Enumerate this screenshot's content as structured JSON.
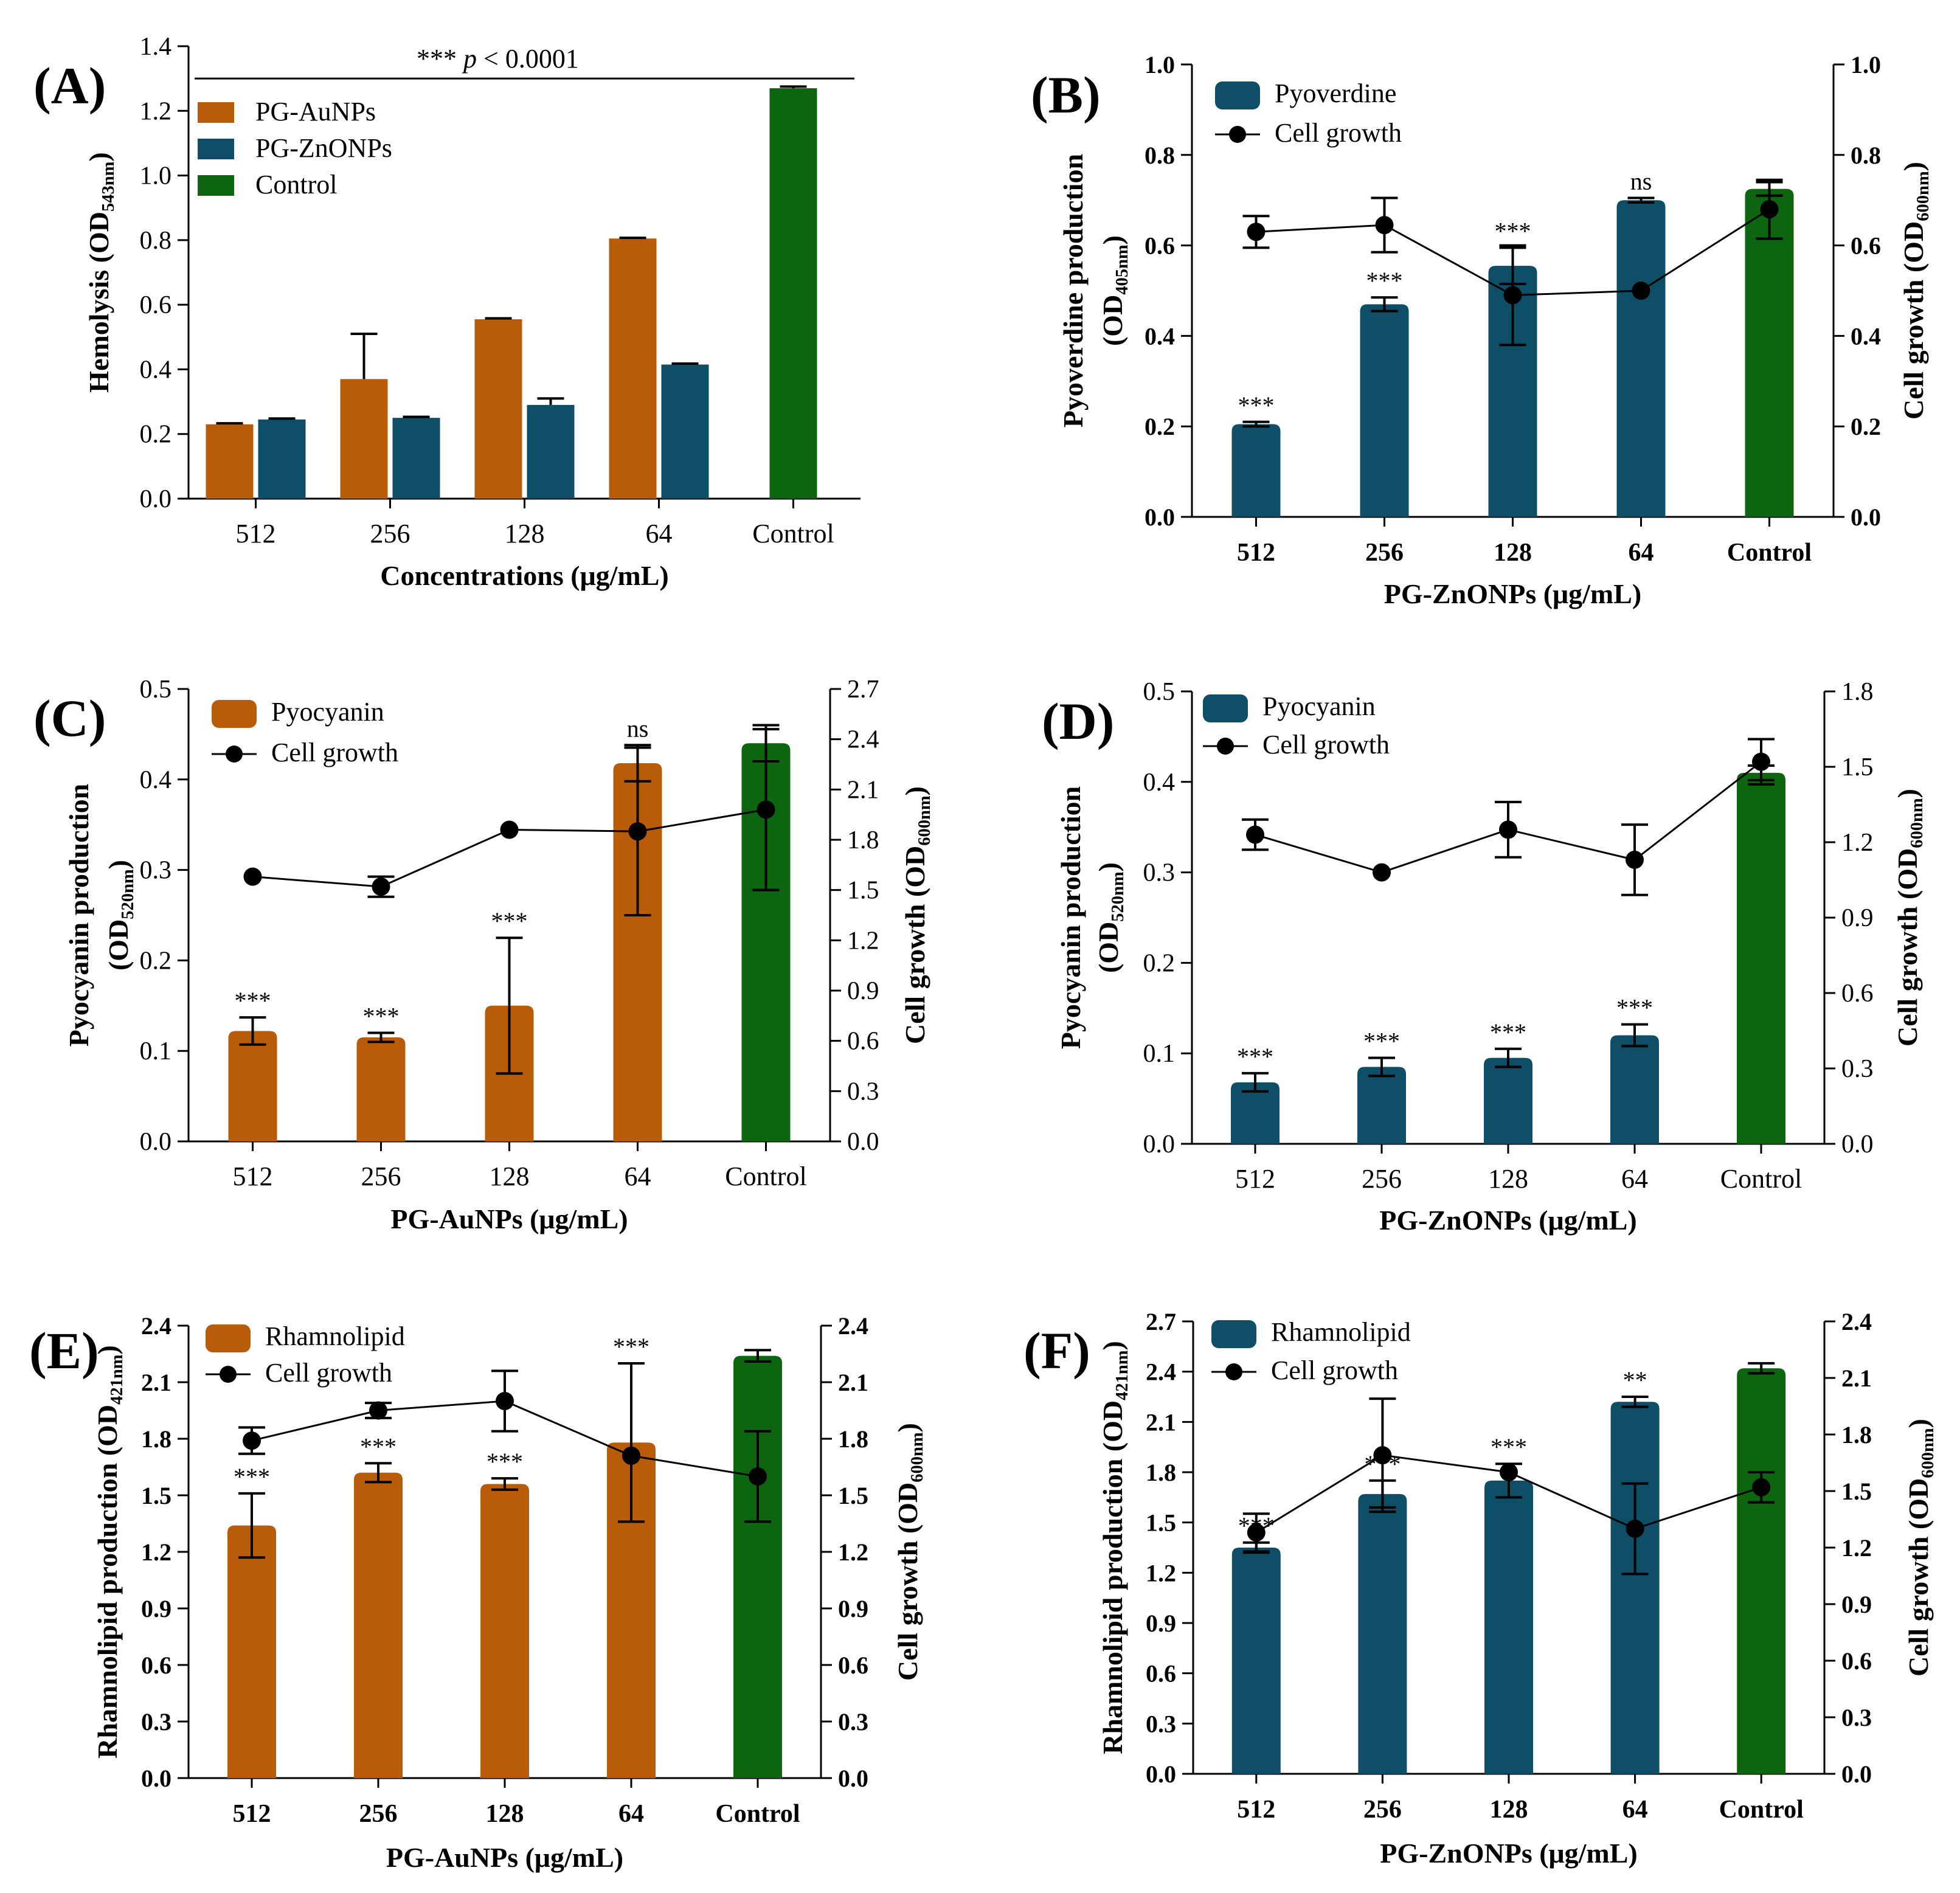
{
  "figure": {
    "colors": {
      "gold": "#B85C0A",
      "teal": "#0E4E66",
      "green": "#0E6510",
      "axis": "#000000",
      "point": "#000000"
    }
  },
  "chart_data": [
    {
      "id": "A",
      "type": "bar",
      "panel_label": "(A)",
      "title": "",
      "categories": [
        "512",
        "256",
        "128",
        "64",
        "Control"
      ],
      "series": [
        {
          "name": "PG-AuNPs",
          "color_key": "gold",
          "values": [
            0.23,
            0.37,
            0.555,
            0.805,
            null
          ],
          "errors": [
            0.003,
            0.14,
            0.003,
            0.002,
            null
          ]
        },
        {
          "name": "PG-ZnONPs",
          "color_key": "teal",
          "values": [
            0.245,
            0.25,
            0.29,
            0.415,
            null
          ],
          "errors": [
            0.003,
            0.003,
            0.02,
            0.003,
            null
          ]
        },
        {
          "name": "Control",
          "color_key": "green",
          "values": [
            null,
            null,
            null,
            null,
            1.27
          ],
          "errors": [
            null,
            null,
            null,
            null,
            0.005
          ]
        }
      ],
      "ylabel_main": "Hemolysis (OD",
      "ylabel_sub": "543nm",
      "ylabel_end": ")",
      "xlabel": "Concentrations (μg/mL)",
      "ylim": [
        0,
        1.4
      ],
      "y_ticks": [
        "0.0",
        "0.2",
        "0.4",
        "0.6",
        "0.8",
        "1.0",
        "1.2",
        "1.4"
      ],
      "significance": {
        "stars": "***",
        "p_symbol": "p",
        "relation": " < 0.0001"
      },
      "legend_position": "top-left"
    },
    {
      "id": "B",
      "type": "bar",
      "panel_label": "(B)",
      "title": "",
      "categories": [
        "512",
        "256",
        "128",
        "64",
        "Control"
      ],
      "bar_series": {
        "name": "Pyoverdine",
        "values": [
          0.205,
          0.47,
          0.555,
          0.7,
          0.725
        ],
        "errors": [
          0.005,
          0.015,
          0.04,
          0.005,
          0.015
        ],
        "color_keys": [
          "teal",
          "teal",
          "teal",
          "teal",
          "green"
        ]
      },
      "line_series": {
        "name": "Cell growth",
        "values": [
          0.63,
          0.645,
          0.49,
          0.5,
          0.68
        ],
        "errors": [
          0.035,
          0.06,
          0.11,
          0.0,
          0.065
        ]
      },
      "annotations": [
        "***",
        "***",
        "***",
        "ns",
        ""
      ],
      "ylabel_main": "Pyoverdine production",
      "ylabel_sub_open": "(OD",
      "ylabel_sub": "405nm",
      "ylabel_end": ")",
      "y2label_main": "Cell growth (OD",
      "y2label_sub": "600nm",
      "y2label_end": ")",
      "xlabel": "PG-ZnONPs (μg/mL)",
      "ylim": [
        0,
        1.0
      ],
      "y2lim": [
        0,
        1.0
      ],
      "y_ticks": [
        "0.0",
        "0.2",
        "0.4",
        "0.6",
        "0.8",
        "1.0"
      ],
      "y2_ticks": [
        "0.0",
        "0.2",
        "0.4",
        "0.6",
        "0.8",
        "1.0"
      ],
      "legend_position": "top-left"
    },
    {
      "id": "C",
      "type": "bar",
      "panel_label": "(C)",
      "title": "",
      "categories": [
        "512",
        "256",
        "128",
        "64",
        "Control"
      ],
      "bar_series": {
        "name": "Pyocyanin",
        "values": [
          0.122,
          0.115,
          0.15,
          0.418,
          0.44
        ],
        "errors": [
          0.015,
          0.005,
          0.075,
          0.02,
          0.02
        ],
        "color_keys": [
          "gold",
          "gold",
          "gold",
          "gold",
          "green"
        ]
      },
      "line_series": {
        "name": "Cell growth",
        "values": [
          1.58,
          1.52,
          1.86,
          1.85,
          1.98
        ],
        "errors": [
          0.0,
          0.06,
          0.0,
          0.5,
          0.48
        ]
      },
      "annotations": [
        "***",
        "***",
        "***",
        "ns",
        ""
      ],
      "ylabel_main": "Pyocyanin production",
      "ylabel_sub_open": "(OD",
      "ylabel_sub": "520nm",
      "ylabel_end": ")",
      "y2label_main": "Cell growth (OD",
      "y2label_sub": "600nm",
      "y2label_end": ")",
      "xlabel": "PG-AuNPs (μg/mL)",
      "ylim": [
        0,
        0.5
      ],
      "y2lim": [
        0,
        2.7
      ],
      "y_ticks": [
        "0.0",
        "0.1",
        "0.2",
        "0.3",
        "0.4",
        "0.5"
      ],
      "y2_ticks": [
        "0.0",
        "0.3",
        "0.6",
        "0.9",
        "1.2",
        "1.5",
        "1.8",
        "2.1",
        "2.4",
        "2.7"
      ],
      "legend_position": "top-left"
    },
    {
      "id": "D",
      "type": "bar",
      "panel_label": "(D)",
      "title": "",
      "categories": [
        "512",
        "256",
        "128",
        "64",
        "Control"
      ],
      "bar_series": {
        "name": "Pyocyanin",
        "values": [
          0.068,
          0.085,
          0.095,
          0.12,
          0.41
        ],
        "errors": [
          0.01,
          0.01,
          0.01,
          0.012,
          0.008
        ],
        "color_keys": [
          "teal",
          "teal",
          "teal",
          "teal",
          "green"
        ]
      },
      "line_series": {
        "name": "Cell growth",
        "values": [
          1.23,
          1.08,
          1.25,
          1.13,
          1.52
        ],
        "errors": [
          0.06,
          0.0,
          0.11,
          0.14,
          0.09
        ]
      },
      "annotations": [
        "***",
        "***",
        "***",
        "***",
        ""
      ],
      "ylabel_main": "Pyocyanin production",
      "ylabel_sub_open": "(OD",
      "ylabel_sub": "520nm",
      "ylabel_end": ")",
      "y2label_main": "Cell growth (OD",
      "y2label_sub": "600nm",
      "y2label_end": ")",
      "xlabel": "PG-ZnONPs (μg/mL)",
      "ylim": [
        0,
        0.5
      ],
      "y2lim": [
        0,
        1.8
      ],
      "y_ticks": [
        "0.0",
        "0.1",
        "0.2",
        "0.3",
        "0.4",
        "0.5"
      ],
      "y2_ticks": [
        "0.0",
        "0.3",
        "0.6",
        "0.9",
        "1.2",
        "1.5",
        "1.8"
      ],
      "legend_position": "top-left"
    },
    {
      "id": "E",
      "type": "bar",
      "panel_label": "(E)",
      "title": "",
      "categories": [
        "512",
        "256",
        "128",
        "64",
        "Control"
      ],
      "bar_series": {
        "name": "Rhamnolipid",
        "values": [
          1.34,
          1.62,
          1.56,
          1.78,
          2.24
        ],
        "errors": [
          0.17,
          0.05,
          0.03,
          0.42,
          0.03
        ],
        "color_keys": [
          "gold",
          "gold",
          "gold",
          "gold",
          "green"
        ]
      },
      "line_series": {
        "name": "Cell growth",
        "values": [
          1.79,
          1.95,
          2.0,
          1.71,
          1.6
        ],
        "errors": [
          0.07,
          0.04,
          0.16,
          0.0,
          0.24
        ]
      },
      "annotations": [
        "***",
        "***",
        "***",
        "***",
        ""
      ],
      "ylabel_main": "Rhamnolipid production (OD",
      "ylabel_sub": "421nm",
      "ylabel_end": ")",
      "y2label_main": "Cell growth (OD",
      "y2label_sub": "600nm",
      "y2label_end": ")",
      "xlabel": "PG-AuNPs (μg/mL)",
      "ylim": [
        0,
        2.4
      ],
      "y2lim": [
        0,
        2.4
      ],
      "y_ticks": [
        "0.0",
        "0.3",
        "0.6",
        "0.9",
        "1.2",
        "1.5",
        "1.8",
        "2.1",
        "2.4"
      ],
      "y2_ticks": [
        "0.0",
        "0.3",
        "0.6",
        "0.9",
        "1.2",
        "1.5",
        "1.8",
        "2.1",
        "2.4"
      ],
      "legend_position": "top-left"
    },
    {
      "id": "F",
      "type": "bar",
      "panel_label": "(F)",
      "title": "",
      "categories": [
        "512",
        "256",
        "128",
        "64",
        "Control"
      ],
      "bar_series": {
        "name": "Rhamnolipid",
        "values": [
          1.35,
          1.67,
          1.75,
          2.22,
          2.42
        ],
        "errors": [
          0.03,
          0.08,
          0.1,
          0.03,
          0.03
        ],
        "color_keys": [
          "teal",
          "teal",
          "teal",
          "teal",
          "green"
        ]
      },
      "line_series": {
        "name": "Cell growth",
        "values": [
          1.28,
          1.69,
          1.6,
          1.3,
          1.52
        ],
        "errors": [
          0.1,
          0.3,
          0.0,
          0.24,
          0.08
        ]
      },
      "annotations": [
        "***",
        "***",
        "***",
        "**",
        ""
      ],
      "ylabel_main": "Rhamnolipid production (OD",
      "ylabel_sub": "421nm",
      "ylabel_end": ")",
      "y2label_main": "Cell growth (OD",
      "y2label_sub": "600nm",
      "y2label_end": ")",
      "xlabel": "PG-ZnONPs (μg/mL)",
      "ylim": [
        0,
        2.7
      ],
      "y2lim": [
        0,
        2.4
      ],
      "y_ticks": [
        "0.0",
        "0.3",
        "0.6",
        "0.9",
        "1.2",
        "1.5",
        "1.8",
        "2.1",
        "2.4",
        "2.7"
      ],
      "y2_ticks": [
        "0.0",
        "0.3",
        "0.6",
        "0.9",
        "1.2",
        "1.5",
        "1.8",
        "2.1",
        "2.4"
      ],
      "legend_position": "top-left"
    }
  ]
}
